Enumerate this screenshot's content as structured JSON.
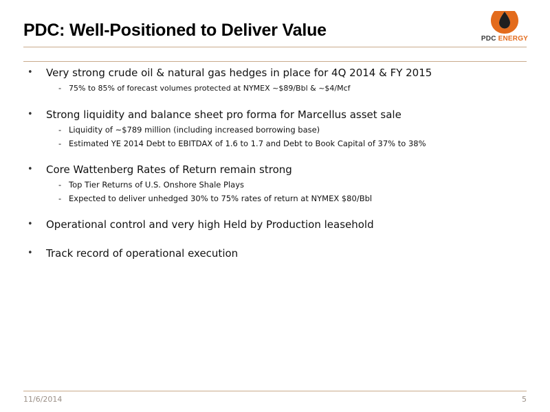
{
  "slide": {
    "title": "PDC: Well-Positioned to Deliver Value",
    "logo": {
      "brand": "PDC",
      "suffix": "ENERGY",
      "accent_color": "#e36b1c",
      "icon": "flame-drop-icon"
    },
    "bullets": [
      {
        "text": "Very strong crude oil & natural gas hedges in place for 4Q 2014 & FY 2015",
        "subs": [
          "75% to 85% of forecast volumes protected at NYMEX ~$89/Bbl & ~$4/Mcf"
        ]
      },
      {
        "text": "Strong liquidity and balance sheet pro forma for Marcellus asset sale",
        "subs": [
          "Liquidity of ~$789 million (including increased borrowing base)",
          "Estimated YE 2014 Debt to EBITDAX of 1.6 to 1.7 and Debt to Book Capital of 37% to 38%"
        ]
      },
      {
        "text": "Core Wattenberg Rates of Return remain strong",
        "subs": [
          "Top Tier Returns of U.S. Onshore Shale Plays",
          "Expected to deliver unhedged 30% to 75% rates of return at NYMEX $80/Bbl"
        ]
      },
      {
        "text": "Operational control and very high Held by Production leasehold",
        "subs": []
      },
      {
        "text": "Track record of operational execution",
        "subs": []
      }
    ],
    "bullet_symbol": "•",
    "sub_symbol": "-",
    "footer": {
      "date": "11/6/2014",
      "page": "5"
    }
  }
}
